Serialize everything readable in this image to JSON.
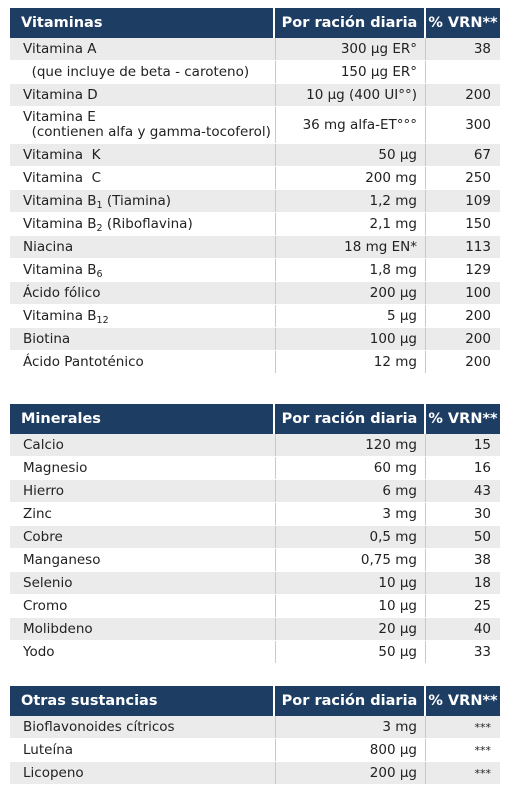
{
  "vitaminas": {
    "headers": {
      "name": "Vitaminas",
      "amount": "Por ración diaria",
      "vrn": "% VRN**"
    },
    "rows": [
      {
        "name": "Vitamina A",
        "amount": "300 µg ER°",
        "vrn": "38"
      },
      {
        "name": "  (que incluye de beta - caroteno)",
        "amount": "150 µg ER°",
        "vrn": ""
      },
      {
        "name": "Vitamina D",
        "amount": "10 µg (400 UI°°)",
        "vrn": "200"
      },
      {
        "name": "Vitamina E",
        "name2": "  (contienen alfa y gamma-tocoferol)",
        "amount": "36 mg alfa-ET°°°",
        "vrn": "300"
      },
      {
        "name": "Vitamina  K",
        "amount": "50 µg",
        "vrn": "67"
      },
      {
        "name": "Vitamina  C",
        "amount": "200 mg",
        "vrn": "250"
      },
      {
        "name": "Vitamina B",
        "sub": "1",
        "suffix": " (Tiamina)",
        "amount": "1,2 mg",
        "vrn": "109"
      },
      {
        "name": "Vitamina B",
        "sub": "2",
        "suffix": " (Riboflavina)",
        "amount": "2,1 mg",
        "vrn": "150"
      },
      {
        "name": "Niacina",
        "amount": "18 mg EN*",
        "vrn": "113"
      },
      {
        "name": "Vitamina B",
        "sub": "6",
        "suffix": "",
        "amount": "1,8 mg",
        "vrn": "129"
      },
      {
        "name": "Ácido fólico",
        "amount": "200 µg",
        "vrn": "100"
      },
      {
        "name": "Vitamina B",
        "sub": "12",
        "suffix": "",
        "amount": "5 µg",
        "vrn": "200"
      },
      {
        "name": "Biotina",
        "amount": "100 µg",
        "vrn": "200"
      },
      {
        "name": "Ácido Pantoténico",
        "amount": "12 mg",
        "vrn": "200"
      }
    ]
  },
  "minerales": {
    "headers": {
      "name": "Minerales",
      "amount": "Por ración diaria",
      "vrn": "% VRN**"
    },
    "rows": [
      {
        "name": "Calcio",
        "amount": "120 mg",
        "vrn": "15"
      },
      {
        "name": "Magnesio",
        "amount": "60 mg",
        "vrn": "16"
      },
      {
        "name": "Hierro",
        "amount": "6 mg",
        "vrn": "43"
      },
      {
        "name": "Zinc",
        "amount": "3 mg",
        "vrn": "30"
      },
      {
        "name": "Cobre",
        "amount": "0,5 mg",
        "vrn": "50"
      },
      {
        "name": "Manganeso",
        "amount": "0,75 mg",
        "vrn": "38"
      },
      {
        "name": "Selenio",
        "amount": "10 µg",
        "vrn": "18"
      },
      {
        "name": "Cromo",
        "amount": "10 µg",
        "vrn": "25"
      },
      {
        "name": "Molibdeno",
        "amount": "20 µg",
        "vrn": "40"
      },
      {
        "name": "Yodo",
        "amount": "50 µg",
        "vrn": "33"
      }
    ]
  },
  "otras": {
    "headers": {
      "name": "Otras sustancias",
      "amount": "Por ración diaria",
      "vrn": "% VRN**"
    },
    "rows": [
      {
        "name": "Bioflavonoides cítricos",
        "amount": "3 mg",
        "vrn": "***"
      },
      {
        "name": "Luteína",
        "amount": "800 µg",
        "vrn": "***"
      },
      {
        "name": "Licopeno",
        "amount": "200 µg",
        "vrn": "***"
      }
    ]
  }
}
